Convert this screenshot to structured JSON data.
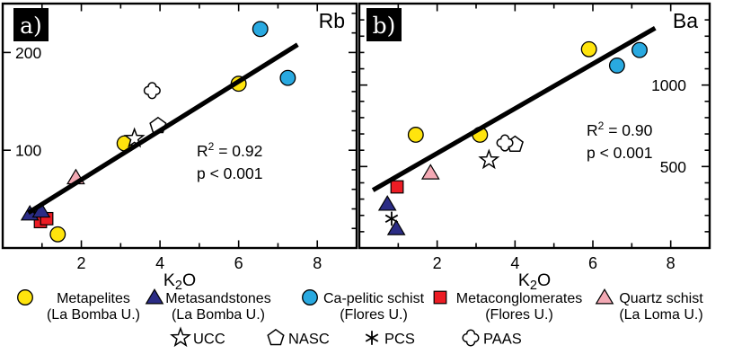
{
  "figure": {
    "colors": {
      "yellow": "#FFE40D",
      "blue": "#29A9E0",
      "navy": "#2B2C85",
      "red": "#EC1C24",
      "pink": "#F3A9B4",
      "black": "#000000",
      "white": "#FFFFFF"
    }
  },
  "chart_data": [
    {
      "type": "scatter",
      "panel_letter": "a)",
      "corner_label": "Rb",
      "xlabel_parts": [
        {
          "t": "K"
        },
        {
          "t": "2",
          "sub": true
        },
        {
          "t": "O"
        }
      ],
      "xlim": [
        0,
        9
      ],
      "ylim": [
        0,
        250
      ],
      "x_ticks_labeled": [
        2,
        4,
        6,
        8
      ],
      "x_ticks_minor": [
        1,
        3,
        5,
        7,
        9
      ],
      "y_ticks_labeled": [
        100,
        200
      ],
      "y_minor_step": 20,
      "y_label_side": "left",
      "annotation": {
        "line1_parts": [
          {
            "t": "R"
          },
          {
            "t": "2",
            "sup": true
          },
          {
            "t": " = 0.92"
          }
        ],
        "line2": "p < 0.001"
      },
      "trendline": {
        "x1": 0.65,
        "y1": 36,
        "x2": 7.5,
        "y2": 208
      },
      "series": [
        {
          "name": "PCS",
          "marker": "asterisk",
          "points": [
            [
              0.82,
              33
            ]
          ]
        },
        {
          "name": "Metaconglomerates (Flores U.)",
          "marker": "square",
          "color": "red",
          "points": [
            [
              0.96,
              27
            ],
            [
              1.12,
              30
            ]
          ]
        },
        {
          "name": "Metasandstones (La Bomba U.)",
          "marker": "triangle",
          "color": "navy",
          "points": [
            [
              0.69,
              35
            ],
            [
              0.98,
              38
            ]
          ]
        },
        {
          "name": "Metapelites (La Bomba U.)",
          "marker": "circle",
          "color": "yellow",
          "points": [
            [
              1.4,
              14
            ],
            [
              3.1,
              107
            ],
            [
              6.0,
              168
            ]
          ]
        },
        {
          "name": "Quartz schist (La Loma U.)",
          "marker": "triangle",
          "color": "pink",
          "points": [
            [
              1.86,
              72
            ]
          ]
        },
        {
          "name": "UCC",
          "marker": "star",
          "points": [
            [
              3.35,
              112
            ]
          ]
        },
        {
          "name": "NASC",
          "marker": "pentagon",
          "points": [
            [
              3.95,
              125
            ]
          ]
        },
        {
          "name": "PAAS",
          "marker": "quatrefoil",
          "points": [
            [
              3.8,
              161
            ]
          ]
        },
        {
          "name": "Ca-pelitic schist (Flores U.)",
          "marker": "circle",
          "color": "blue",
          "points": [
            [
              6.55,
              224
            ],
            [
              7.25,
              174
            ]
          ]
        }
      ]
    },
    {
      "type": "scatter",
      "panel_letter": "b)",
      "corner_label": "Ba",
      "xlabel_parts": [
        {
          "t": "K"
        },
        {
          "t": "2",
          "sub": true
        },
        {
          "t": "O"
        }
      ],
      "xlim": [
        0,
        9
      ],
      "ylim": [
        0,
        1500
      ],
      "x_ticks_labeled": [
        2,
        4,
        6,
        8
      ],
      "x_ticks_minor": [
        1,
        3,
        5,
        7,
        9
      ],
      "y_ticks_labeled": [
        500,
        1000
      ],
      "y_minor_step": 100,
      "y_label_side": "right",
      "annotation": {
        "line1_parts": [
          {
            "t": "R"
          },
          {
            "t": "2",
            "sup": true
          },
          {
            "t": " = 0.90"
          }
        ],
        "line2": "p < 0.001"
      },
      "trendline": {
        "x1": 0.35,
        "y1": 355,
        "x2": 7.6,
        "y2": 1350
      },
      "series": [
        {
          "name": "Metasandstones (La Bomba U.)",
          "marker": "triangle",
          "color": "navy",
          "points": [
            [
              0.72,
              270
            ],
            [
              0.95,
              120
            ]
          ]
        },
        {
          "name": "PCS",
          "marker": "asterisk",
          "points": [
            [
              0.83,
              180
            ]
          ]
        },
        {
          "name": "Metaconglomerates (Flores U.)",
          "marker": "square",
          "color": "red",
          "points": [
            [
              0.97,
              375
            ]
          ]
        },
        {
          "name": "Quartz schist (La Loma U.)",
          "marker": "triangle",
          "color": "pink",
          "points": [
            [
              1.83,
              462
            ]
          ]
        },
        {
          "name": "Metapelites (La Bomba U.)",
          "marker": "circle",
          "color": "yellow",
          "points": [
            [
              1.45,
              695
            ],
            [
              3.1,
              695
            ],
            [
              5.9,
              1220
            ]
          ]
        },
        {
          "name": "UCC",
          "marker": "star",
          "points": [
            [
              3.33,
              540
            ]
          ]
        },
        {
          "name": "NASC",
          "marker": "pentagon",
          "points": [
            [
              4.0,
              635
            ]
          ]
        },
        {
          "name": "PAAS",
          "marker": "quatrefoil",
          "points": [
            [
              3.74,
              645
            ]
          ]
        },
        {
          "name": "Ca-pelitic schist (Flores U.)",
          "marker": "circle",
          "color": "blue",
          "points": [
            [
              6.62,
              1120
            ],
            [
              7.2,
              1215
            ]
          ]
        }
      ]
    }
  ],
  "legend": {
    "row1": [
      {
        "marker": "circle",
        "color": "yellow",
        "label": "Metapelites",
        "sublabel": "(La Bomba U.)"
      },
      {
        "marker": "triangle",
        "color": "navy",
        "label": "Metasandstones",
        "sublabel": "(La Bomba U.)"
      },
      {
        "marker": "circle",
        "color": "blue",
        "label": "Ca-pelitic schist",
        "sublabel": "(Flores U.)"
      },
      {
        "marker": "square",
        "color": "red",
        "label": "Metaconglomerates",
        "sublabel": "(Flores U.)"
      },
      {
        "marker": "triangle",
        "color": "pink",
        "label": "Quartz schist",
        "sublabel": "(La Loma U.)"
      }
    ],
    "row2": [
      {
        "marker": "star",
        "label": "UCC"
      },
      {
        "marker": "pentagon",
        "label": "NASC"
      },
      {
        "marker": "asterisk",
        "label": "PCS"
      },
      {
        "marker": "quatrefoil",
        "label": "PAAS"
      }
    ]
  }
}
